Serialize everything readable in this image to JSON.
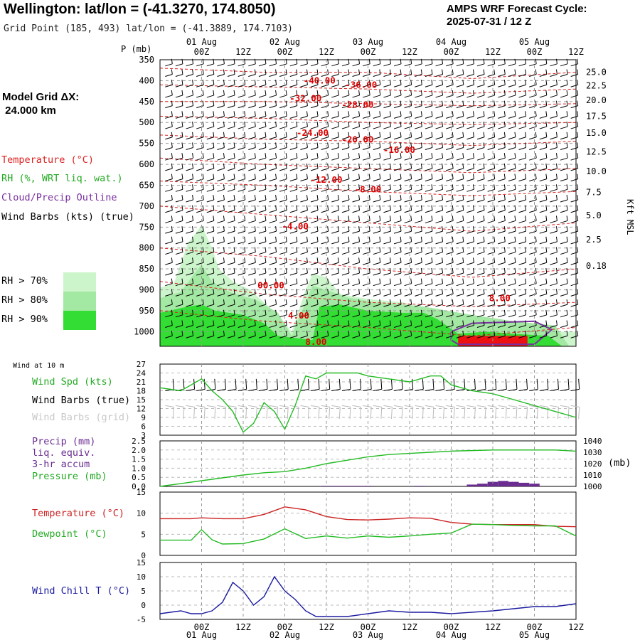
{
  "header": {
    "title": "Wellington:  lat/lon = (-41.3270, 174.8050)",
    "grid_point": "Grid Point (185, 493) lat/lon = (-41.3889, 174.7103)",
    "cycle_line1": "AMPS WRF Forecast Cycle:",
    "cycle_line2": "2025-07-31 / 12  Z",
    "grid_dx_line1": "Model Grid ΔX:",
    "grid_dx_line2": " 24.000 km"
  },
  "time_axis": {
    "hours_range": [
      0,
      120
    ],
    "tick_labels": [
      "00Z",
      "12Z",
      "00Z",
      "12Z",
      "00Z",
      "12Z",
      "00Z",
      "12Z",
      "00Z",
      "12Z"
    ],
    "tick_hours": [
      12,
      24,
      36,
      48,
      60,
      72,
      84,
      96,
      108,
      120
    ],
    "date_labels": [
      "01 Aug",
      "02 Aug",
      "03 Aug",
      "04 Aug",
      "05 Aug"
    ],
    "date_hours": [
      12,
      36,
      60,
      84,
      108
    ]
  },
  "legend": {
    "temperature": "Temperature (°C)",
    "rh": "RH (%, WRT liq. wat.)",
    "cloud": "Cloud/Precip Outline",
    "barbs": "Wind Barbs (kts) (true)",
    "rh70": "RH > 70%",
    "rh80": "RH > 80%",
    "rh90": "RH > 90%",
    "colors": {
      "rh70": "#ccf5cc",
      "rh80": "#a3e8a3",
      "rh90": "#33dd33",
      "temperature": "#dd0000",
      "rh": "#22aa22",
      "cloud": "#7a2fa0"
    }
  },
  "chart_data": [
    {
      "type": "heatmap",
      "name": "vertical cross-section",
      "left_axis_label": "P (mb)",
      "right_axis_label": "Kft MSL",
      "y_ticks_mb": [
        350,
        400,
        450,
        500,
        550,
        600,
        650,
        700,
        750,
        800,
        850,
        900,
        950,
        1000
      ],
      "right_ticks_kft": [
        25.0,
        22.5,
        20.0,
        17.5,
        15.0,
        12.5,
        10.0,
        7.5,
        5.0,
        2.5,
        0.18
      ],
      "right_ticks_mb": [
        380,
        412,
        447,
        485,
        525,
        570,
        617,
        667,
        722,
        780,
        843,
        917,
        1022
      ],
      "ylim_mb": [
        350,
        1035
      ],
      "temperature_labels": [
        {
          "text": "-40.00",
          "hour": 46,
          "mb": 400
        },
        {
          "text": "-36.00",
          "hour": 58,
          "mb": 410
        },
        {
          "text": "-32.00",
          "hour": 42,
          "mb": 443
        },
        {
          "text": "-28.00",
          "hour": 57,
          "mb": 458
        },
        {
          "text": "-24.00",
          "hour": 44,
          "mb": 525
        },
        {
          "text": "-20.00",
          "hour": 57,
          "mb": 541
        },
        {
          "text": "-16.00",
          "hour": 69,
          "mb": 566
        },
        {
          "text": "-12.00",
          "hour": 48,
          "mb": 637
        },
        {
          "text": "-8.00",
          "hour": 60,
          "mb": 660
        },
        {
          "text": "-4.00",
          "hour": 39,
          "mb": 749
        },
        {
          "text": "00.00",
          "hour": 32,
          "mb": 890
        },
        {
          "text": "4.00",
          "hour": 40,
          "mb": 962
        },
        {
          "text": "8.00",
          "hour": 98,
          "mb": 920
        },
        {
          "text": "8.00",
          "hour": 45,
          "mb": 1025
        }
      ]
    },
    {
      "type": "line",
      "name": "wind panel",
      "header_label": "Wind at 10 m",
      "label_spd": "Wind Spd (kts)",
      "label_barbs_true": "Wind Barbs (true)",
      "label_barbs_grid": "Wind Barbs (grid)",
      "y_ticks": [
        27,
        24,
        21,
        18,
        15,
        12,
        9,
        6,
        3
      ],
      "ylim": [
        3,
        27
      ],
      "series": [
        {
          "name": "Wind Spd (kts)",
          "color": "#22bb22",
          "x": [
            0,
            6,
            9,
            12,
            15,
            18,
            21,
            24,
            27,
            30,
            33,
            36,
            39,
            42,
            45,
            48,
            51,
            54,
            57,
            60,
            66,
            72,
            78,
            81,
            84,
            87,
            90,
            96,
            102,
            108,
            114,
            120
          ],
          "values": [
            19,
            18,
            20,
            22,
            18,
            15,
            11,
            4,
            7,
            14,
            11,
            5,
            13,
            23,
            22,
            24,
            24,
            24,
            24,
            23,
            22,
            21,
            23,
            23,
            20,
            19,
            18,
            17,
            15,
            13,
            11,
            9
          ]
        }
      ]
    },
    {
      "type": "line",
      "name": "precip pressure panel",
      "label_precip": "Precip (mm)",
      "label_liq": "liq. equiv.",
      "label_accum": "3-hr accum",
      "label_pressure": "Pressure (mb)",
      "unit_right": "(mb)",
      "left_ticks": [
        "2.5",
        "2.0",
        "1.5",
        "1.0",
        "0.5",
        "0.0"
      ],
      "left_values": [
        2.5,
        2.0,
        1.5,
        1.0,
        0.5,
        0.0
      ],
      "right_ticks": [
        1040,
        1030,
        1020,
        1010,
        1000
      ],
      "ylim_left": [
        0,
        2.5
      ],
      "ylim_right": [
        1000,
        1040
      ],
      "series": [
        {
          "name": "Pressure (mb)",
          "color": "#22bb22",
          "x": [
            0,
            12,
            24,
            30,
            36,
            42,
            48,
            54,
            60,
            66,
            72,
            78,
            84,
            96,
            108,
            114,
            120
          ],
          "values": [
            1000,
            1005,
            1010,
            1012,
            1013,
            1016,
            1020,
            1023,
            1026,
            1028,
            1029,
            1030,
            1031,
            1032,
            1032,
            1032,
            1031
          ]
        },
        {
          "name": "Precip (mm)",
          "color": "#6a2c91",
          "type": "bar",
          "x": [
            9,
            12,
            48,
            51,
            54,
            57,
            60,
            75,
            90,
            93,
            96,
            99,
            102,
            105,
            108
          ],
          "values": [
            0.03,
            0.03,
            0.03,
            0.03,
            0.03,
            0.03,
            0.03,
            0.03,
            0.1,
            0.15,
            0.25,
            0.3,
            0.25,
            0.2,
            0.15
          ]
        }
      ]
    },
    {
      "type": "line",
      "name": "temperature dewpoint panel",
      "label_temp": "Temperature (°C)",
      "label_dew": "Dewpoint (°C)",
      "y_ticks": [
        15,
        10,
        5,
        0
      ],
      "ylim": [
        0,
        15
      ],
      "series": [
        {
          "name": "Temperature (°C)",
          "color": "#cc2222",
          "x": [
            0,
            9,
            12,
            18,
            24,
            30,
            36,
            42,
            48,
            54,
            60,
            66,
            72,
            78,
            84,
            90,
            96,
            108,
            114,
            120
          ],
          "values": [
            8.7,
            8.7,
            8.9,
            8.7,
            8.7,
            9.7,
            11.5,
            10.8,
            9.2,
            8.5,
            8.4,
            8.6,
            8.9,
            8.8,
            7.8,
            7.4,
            7.3,
            7.3,
            6.9,
            6.8
          ]
        },
        {
          "name": "Dewpoint (°C)",
          "color": "#22bb22",
          "x": [
            0,
            9,
            12,
            15,
            18,
            24,
            30,
            36,
            42,
            48,
            54,
            60,
            66,
            72,
            78,
            84,
            90,
            96,
            102,
            108,
            114,
            120
          ],
          "values": [
            3.6,
            3.6,
            6.1,
            3.7,
            2.7,
            2.8,
            3.9,
            6.3,
            4.0,
            4.6,
            4.1,
            4.6,
            4.3,
            4.6,
            5.0,
            5.3,
            7.4,
            7.3,
            7.1,
            7.0,
            7.0,
            4.6
          ]
        }
      ]
    },
    {
      "type": "line",
      "name": "wind chill panel",
      "label": "Wind Chill T (°C)",
      "y_ticks": [
        15,
        10,
        5,
        0,
        -5
      ],
      "ylim": [
        -5,
        15
      ],
      "series": [
        {
          "name": "Wind Chill T (°C)",
          "color": "#1a1aa0",
          "x": [
            0,
            6,
            9,
            12,
            15,
            18,
            21,
            24,
            27,
            30,
            33,
            36,
            39,
            42,
            45,
            48,
            51,
            54,
            60,
            66,
            72,
            78,
            84,
            96,
            108,
            114,
            120
          ],
          "values": [
            -3,
            -2,
            -3,
            -3,
            -2,
            1,
            8,
            5,
            0,
            3,
            10,
            5,
            2,
            -2,
            -4,
            -4,
            -4,
            -4,
            -3,
            -2,
            -2.5,
            -2.5,
            -3,
            -2,
            -0.5,
            -0.5,
            0.5
          ]
        }
      ]
    }
  ]
}
